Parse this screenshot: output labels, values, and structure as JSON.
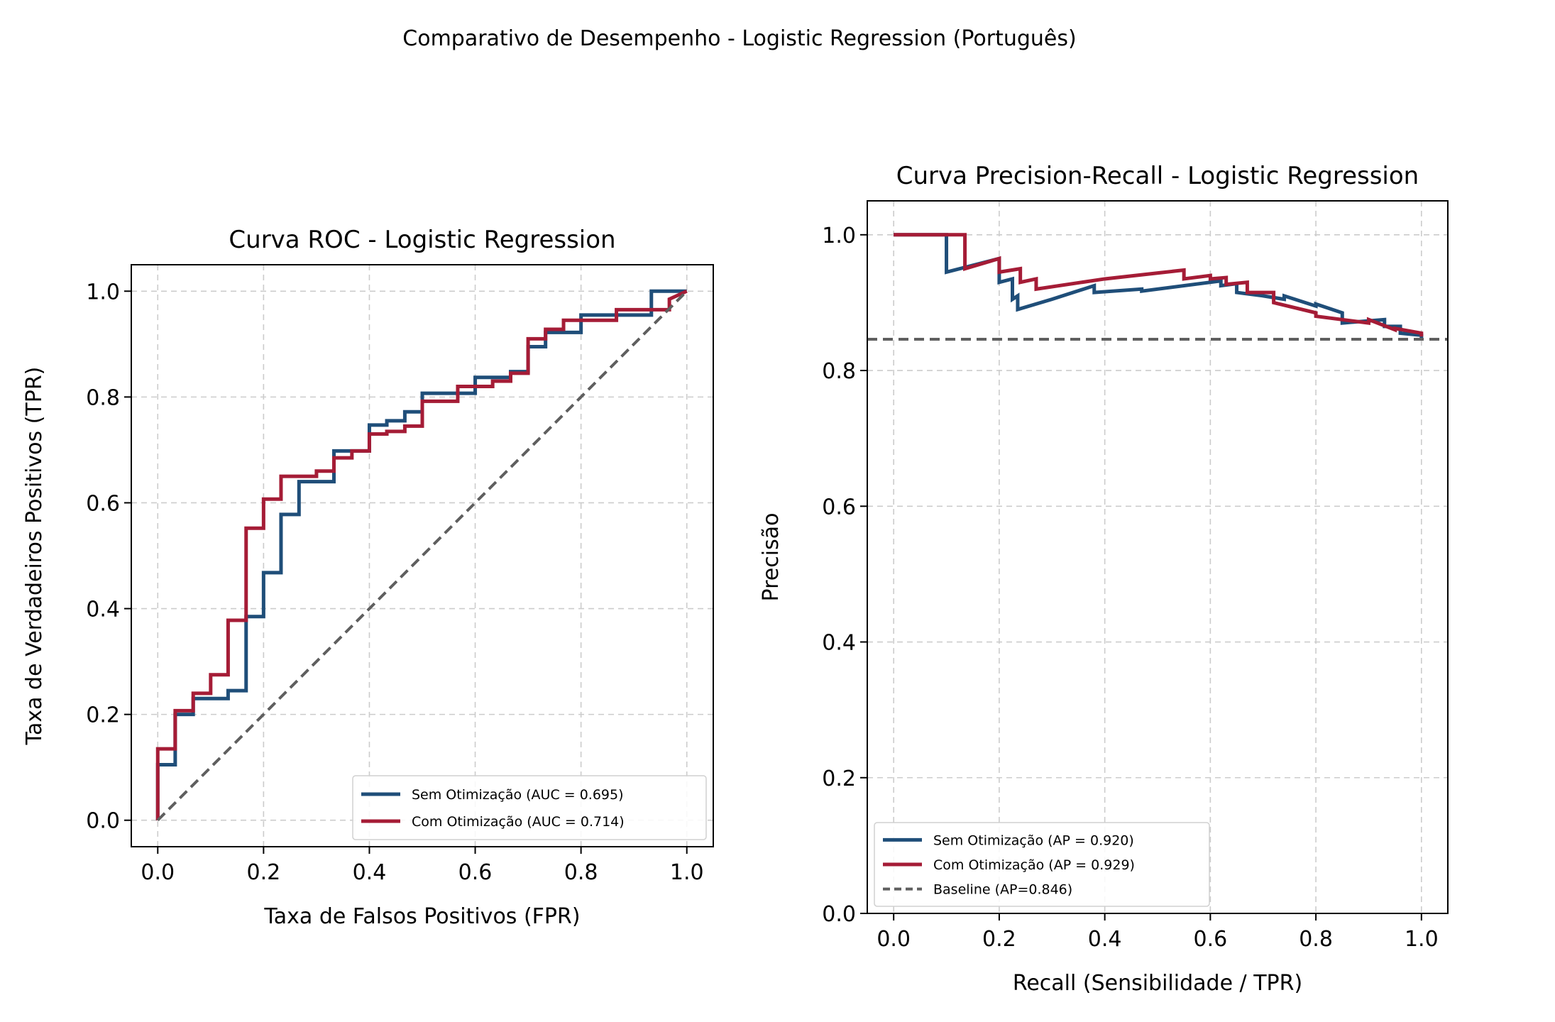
{
  "figure": {
    "suptitle": "Comparativo de Desempenho - Logistic Regression (Português)"
  },
  "colors": {
    "sem": "#1f4e79",
    "com": "#a51c36",
    "baseline": "#5f5f5f",
    "grid": "#cccccc"
  },
  "chart_data": [
    {
      "type": "line",
      "title": "Curva ROC - Logistic Regression",
      "xlabel": "Taxa de Falsos Positivos (FPR)",
      "ylabel": "Taxa de Verdadeiros Positivos (TPR)",
      "xlim": [
        -0.05,
        1.05
      ],
      "ylim": [
        -0.05,
        1.05
      ],
      "xticks": [
        "0.0",
        "0.2",
        "0.4",
        "0.6",
        "0.8",
        "1.0"
      ],
      "yticks": [
        "0.0",
        "0.2",
        "0.4",
        "0.6",
        "0.8",
        "1.0"
      ],
      "grid": true,
      "legend_position": "lower-right",
      "series": [
        {
          "name": "Sem Otimização (AUC = 0.695)",
          "color_key": "sem",
          "x": [
            0,
            0,
            0.033,
            0.033,
            0.067,
            0.067,
            0.133,
            0.133,
            0.167,
            0.167,
            0.2,
            0.2,
            0.233,
            0.233,
            0.267,
            0.267,
            0.333,
            0.333,
            0.4,
            0.4,
            0.433,
            0.433,
            0.467,
            0.467,
            0.5,
            0.5,
            0.6,
            0.6,
            0.667,
            0.667,
            0.7,
            0.7,
            0.733,
            0.733,
            0.8,
            0.8,
            0.933,
            0.933,
            1.0
          ],
          "y": [
            0,
            0.105,
            0.105,
            0.2,
            0.2,
            0.23,
            0.23,
            0.245,
            0.245,
            0.385,
            0.385,
            0.468,
            0.468,
            0.578,
            0.578,
            0.64,
            0.64,
            0.698,
            0.698,
            0.747,
            0.747,
            0.755,
            0.755,
            0.772,
            0.772,
            0.807,
            0.807,
            0.837,
            0.837,
            0.848,
            0.848,
            0.895,
            0.895,
            0.922,
            0.922,
            0.955,
            0.955,
            1.0,
            1.0
          ]
        },
        {
          "name": "Com Otimização (AUC = 0.714)",
          "color_key": "com",
          "x": [
            0,
            0,
            0.033,
            0.033,
            0.067,
            0.067,
            0.1,
            0.1,
            0.133,
            0.133,
            0.167,
            0.167,
            0.2,
            0.2,
            0.233,
            0.233,
            0.3,
            0.3,
            0.333,
            0.333,
            0.367,
            0.367,
            0.4,
            0.4,
            0.433,
            0.433,
            0.467,
            0.467,
            0.5,
            0.5,
            0.567,
            0.567,
            0.633,
            0.633,
            0.667,
            0.667,
            0.7,
            0.7,
            0.733,
            0.733,
            0.767,
            0.767,
            0.867,
            0.867,
            0.967,
            0.967,
            1.0
          ],
          "y": [
            0,
            0.135,
            0.135,
            0.207,
            0.207,
            0.24,
            0.24,
            0.275,
            0.275,
            0.378,
            0.378,
            0.552,
            0.552,
            0.607,
            0.607,
            0.65,
            0.65,
            0.66,
            0.66,
            0.685,
            0.685,
            0.698,
            0.698,
            0.73,
            0.73,
            0.735,
            0.735,
            0.745,
            0.745,
            0.792,
            0.792,
            0.82,
            0.82,
            0.83,
            0.83,
            0.845,
            0.845,
            0.91,
            0.91,
            0.928,
            0.928,
            0.945,
            0.945,
            0.965,
            0.965,
            0.985,
            1.0
          ]
        },
        {
          "name": "",
          "color_key": "baseline",
          "dashed": true,
          "x": [
            0,
            1
          ],
          "y": [
            0,
            1
          ]
        }
      ]
    },
    {
      "type": "line",
      "title": "Curva Precision-Recall - Logistic Regression",
      "xlabel": "Recall (Sensibilidade / TPR)",
      "ylabel": "Precisão",
      "xlim": [
        -0.05,
        1.05
      ],
      "ylim": [
        0.0,
        1.05
      ],
      "xticks": [
        "0.0",
        "0.2",
        "0.4",
        "0.6",
        "0.8",
        "1.0"
      ],
      "yticks": [
        "0.0",
        "0.2",
        "0.4",
        "0.6",
        "0.8",
        "1.0"
      ],
      "grid": true,
      "legend_position": "lower-left",
      "series": [
        {
          "name": "Sem Otimização (AP = 0.920)",
          "color_key": "sem",
          "x": [
            0,
            0.1,
            0.1,
            0.2,
            0.2,
            0.225,
            0.225,
            0.235,
            0.235,
            0.3,
            0.38,
            0.38,
            0.47,
            0.47,
            0.62,
            0.62,
            0.65,
            0.65,
            0.7,
            0.7,
            0.74,
            0.74,
            0.8,
            0.8,
            0.85,
            0.85,
            0.93,
            0.93,
            0.96,
            0.96,
            1.0,
            1.0
          ],
          "y": [
            1.0,
            1.0,
            0.945,
            0.965,
            0.93,
            0.935,
            0.905,
            0.91,
            0.89,
            0.905,
            0.925,
            0.915,
            0.92,
            0.917,
            0.932,
            0.925,
            0.928,
            0.915,
            0.91,
            0.91,
            0.905,
            0.91,
            0.895,
            0.898,
            0.885,
            0.87,
            0.875,
            0.865,
            0.865,
            0.855,
            0.852,
            0.846
          ]
        },
        {
          "name": "Com Otimização (AP = 0.929)",
          "color_key": "com",
          "x": [
            0,
            0.135,
            0.135,
            0.2,
            0.2,
            0.24,
            0.24,
            0.27,
            0.27,
            0.4,
            0.55,
            0.55,
            0.6,
            0.6,
            0.63,
            0.63,
            0.67,
            0.67,
            0.72,
            0.72,
            0.8,
            0.8,
            0.9,
            0.9,
            0.95,
            0.95,
            1.0,
            1.0
          ],
          "y": [
            1.0,
            1.0,
            0.95,
            0.965,
            0.945,
            0.95,
            0.93,
            0.935,
            0.92,
            0.935,
            0.948,
            0.935,
            0.94,
            0.935,
            0.937,
            0.927,
            0.93,
            0.915,
            0.915,
            0.9,
            0.885,
            0.88,
            0.87,
            0.875,
            0.86,
            0.862,
            0.855,
            0.85
          ]
        },
        {
          "name": "Baseline (AP=0.846)",
          "color_key": "baseline",
          "dashed": true,
          "x": [
            -0.05,
            1.05
          ],
          "y": [
            0.846,
            0.846
          ]
        }
      ]
    }
  ]
}
